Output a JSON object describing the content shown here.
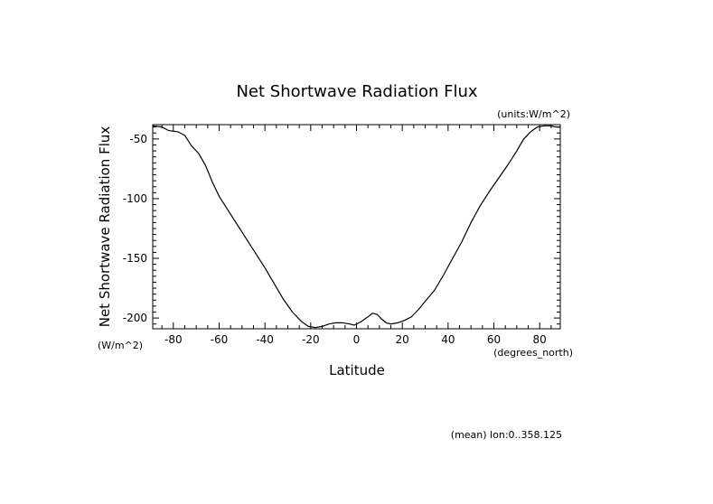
{
  "chart_data": {
    "type": "line",
    "title": "Net Shortwave Radiation Flux",
    "units_label": "(units:W/m^2)",
    "xlabel": "Latitude",
    "xunits": "(degrees_north)",
    "ylabel": "Net Shortwave Radiation Flux",
    "yunits": "(W/m^2)",
    "footer": "(mean) lon:0..358.125",
    "xlim": [
      -89,
      89
    ],
    "ylim": [
      -209,
      -38
    ],
    "x_ticks": [
      -80,
      -60,
      -40,
      -20,
      0,
      20,
      40,
      60,
      80
    ],
    "x_tick_labels": [
      "-80",
      "-60",
      "-40",
      "-20",
      "0",
      "20",
      "40",
      "60",
      "80"
    ],
    "y_ticks": [
      -50,
      -100,
      -150,
      -200
    ],
    "y_tick_labels": [
      "-50",
      "-100",
      "-150",
      "-200"
    ],
    "grid": false,
    "series": [
      {
        "x": [
          -89,
          -85,
          -82,
          -78,
          -75,
          -72,
          -69,
          -66,
          -63,
          -60,
          -56,
          -52,
          -48,
          -44,
          -40,
          -36,
          -32,
          -28,
          -24,
          -21,
          -18,
          -15,
          -12,
          -9,
          -6,
          -3,
          -1,
          2,
          5,
          7,
          9,
          11,
          13,
          15,
          18,
          21,
          24,
          27,
          30,
          34,
          38,
          42,
          46,
          50,
          54,
          58,
          62,
          66,
          70,
          73,
          76,
          79,
          82,
          85,
          87,
          89
        ],
        "y": [
          -39,
          -40,
          -43,
          -44,
          -47,
          -56,
          -62,
          -72,
          -86,
          -98,
          -110,
          -122,
          -134,
          -146,
          -158,
          -171,
          -184,
          -195,
          -203,
          -207,
          -208,
          -207,
          -205,
          -204,
          -204,
          -205,
          -206,
          -203,
          -199,
          -196,
          -197,
          -201,
          -204,
          -205,
          -204,
          -202,
          -199,
          -193,
          -186,
          -177,
          -164,
          -150,
          -136,
          -120,
          -106,
          -94,
          -83,
          -72,
          -60,
          -50,
          -44,
          -40,
          -39,
          -39,
          -40,
          -40
        ]
      }
    ]
  }
}
